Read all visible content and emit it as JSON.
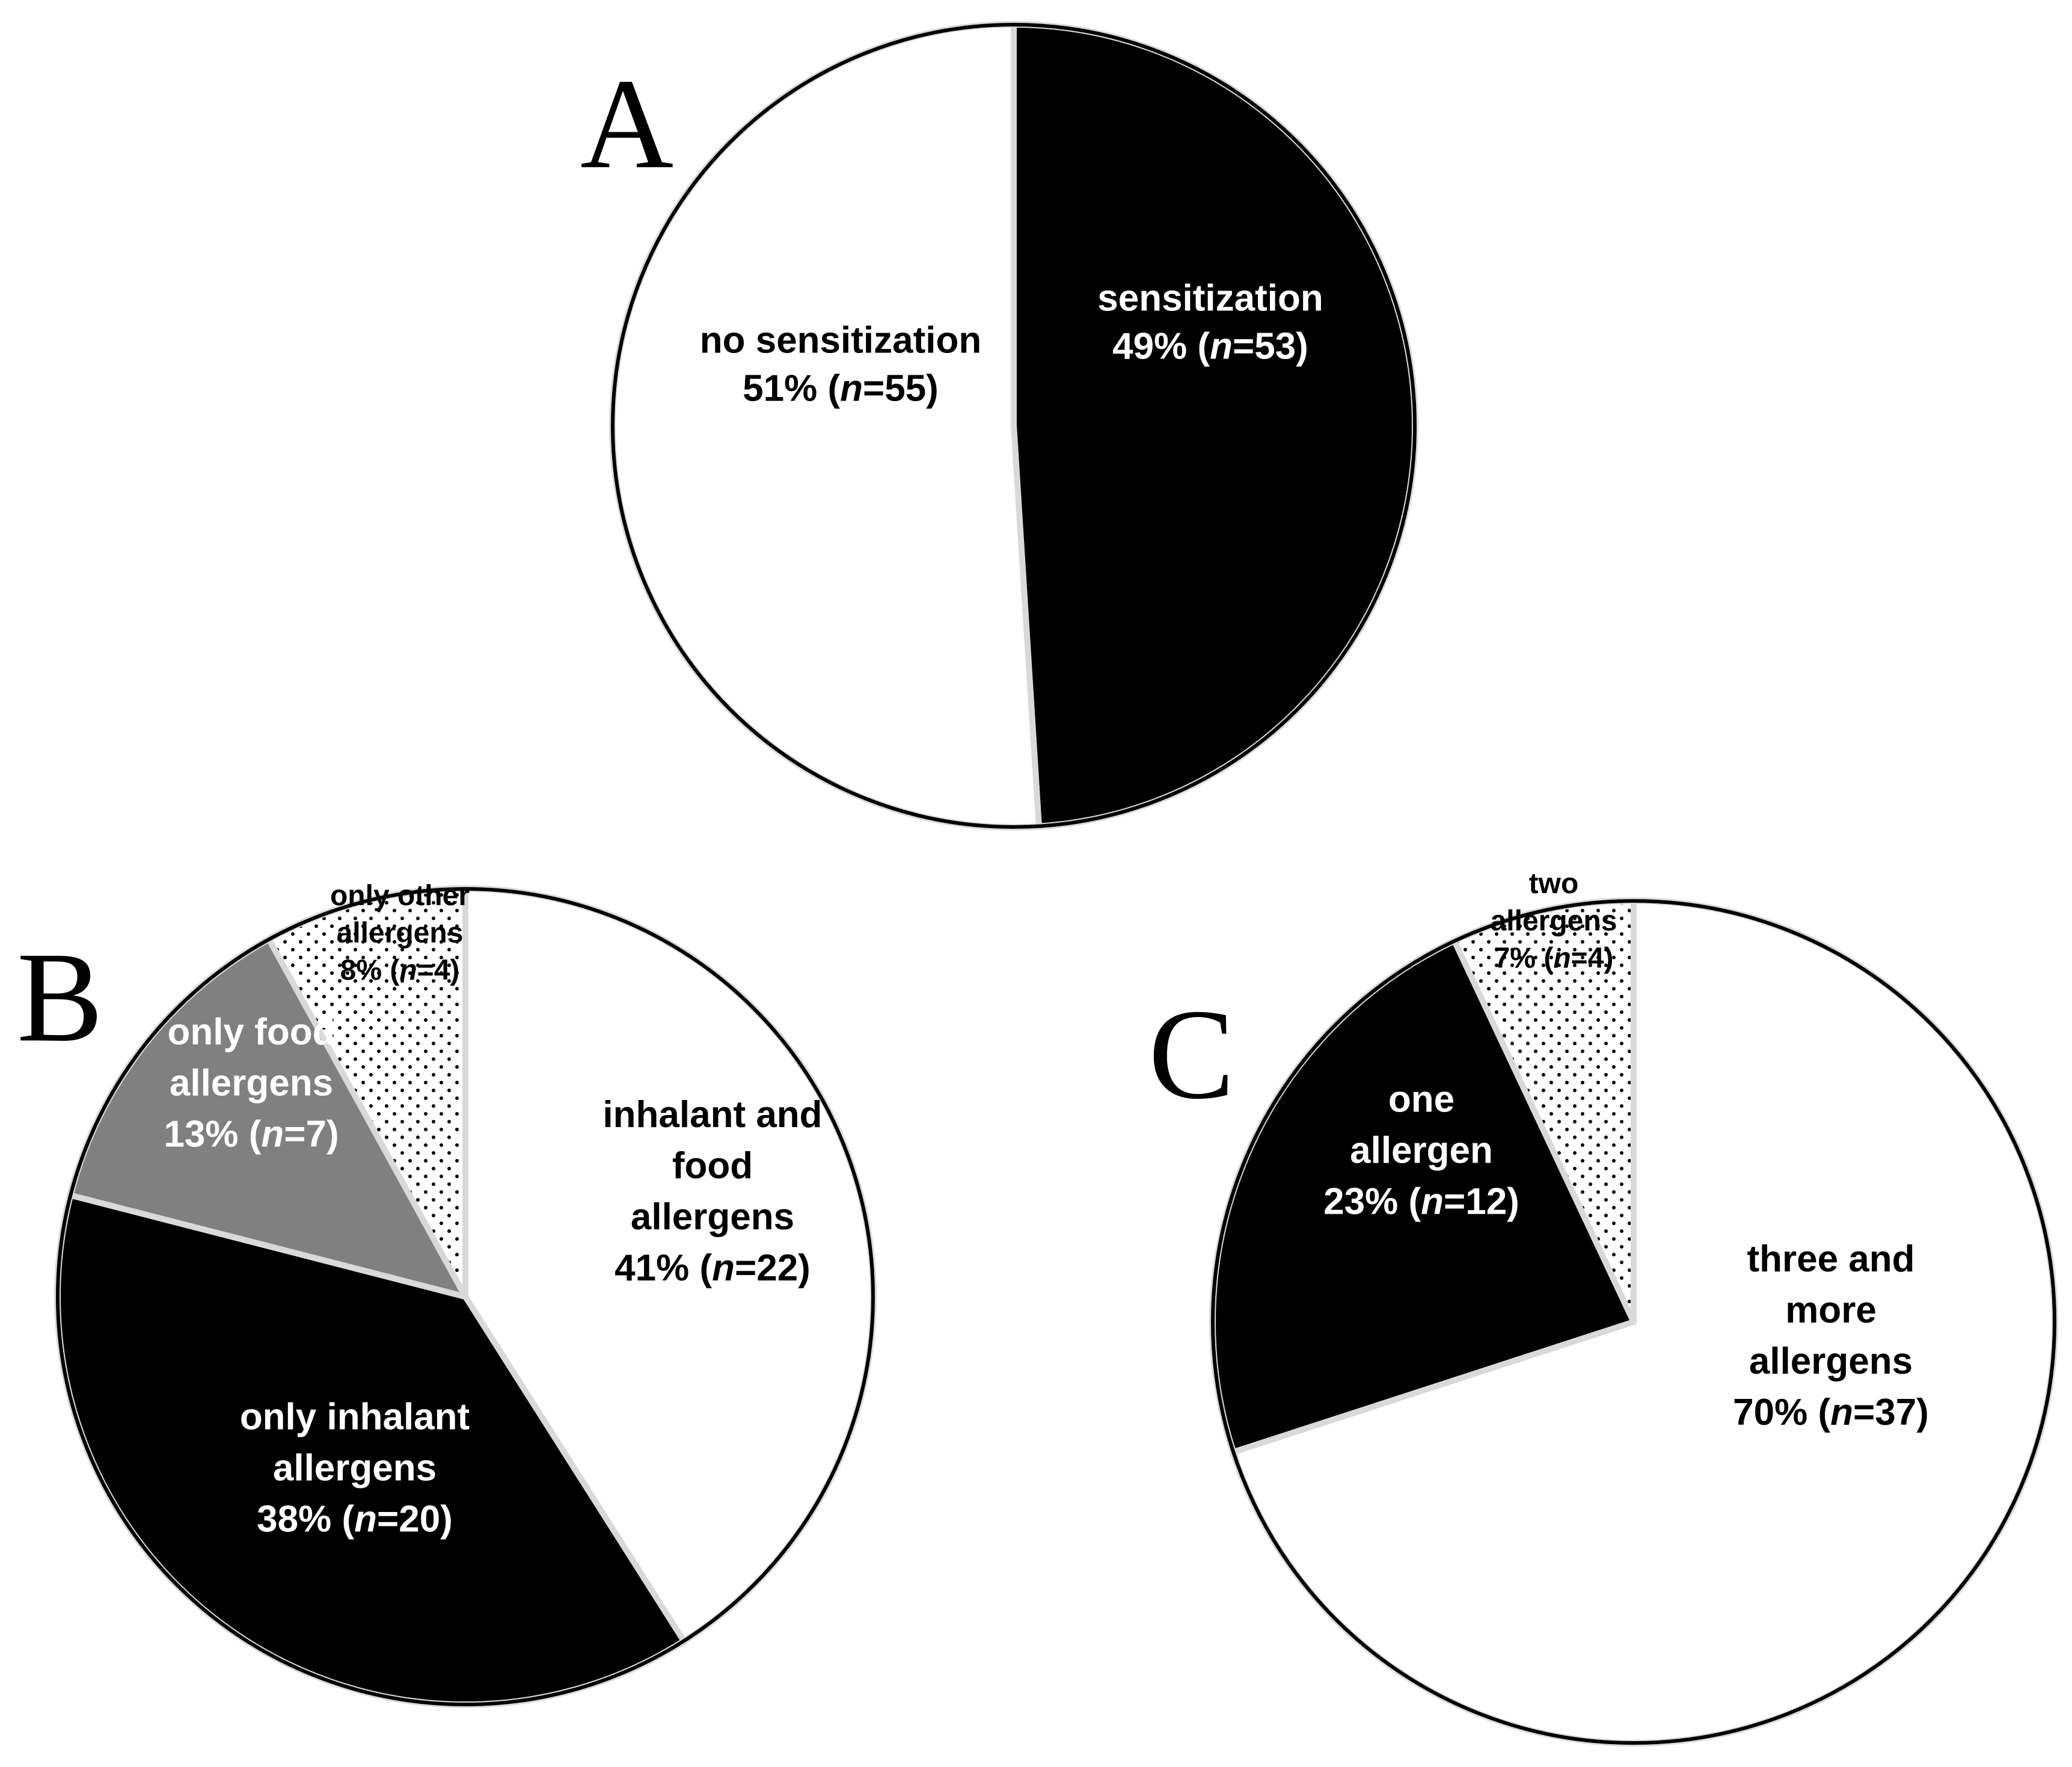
{
  "colors": {
    "black": "#000000",
    "white": "#ffffff",
    "gray": "#808080",
    "gap": "#d9d9d9"
  },
  "chart_data": [
    {
      "type": "pie",
      "panel": "A",
      "slices": [
        {
          "key": "sensitization",
          "label_lines": [
            "sensitization"
          ],
          "percent_text": "49%",
          "n": "53",
          "value": 49,
          "fill": "black",
          "text_color": "#ffffff"
        },
        {
          "key": "no-sensitization",
          "label_lines": [
            "no sensitization"
          ],
          "percent_text": "51%",
          "n": "55",
          "value": 51,
          "fill": "white",
          "text_color": "#000000"
        }
      ]
    },
    {
      "type": "pie",
      "panel": "B",
      "slices": [
        {
          "key": "inhalant-and-food",
          "label_lines": [
            "inhalant and",
            "food",
            "allergens"
          ],
          "percent_text": "41%",
          "n": "22",
          "value": 41,
          "fill": "white",
          "text_color": "#000000"
        },
        {
          "key": "only-inhalant",
          "label_lines": [
            "only inhalant",
            "allergens"
          ],
          "percent_text": "38%",
          "n": "20",
          "value": 38,
          "fill": "black",
          "text_color": "#ffffff"
        },
        {
          "key": "only-food",
          "label_lines": [
            "only food",
            "allergens"
          ],
          "percent_text": "13%",
          "n": "7",
          "value": 13,
          "fill": "gray",
          "text_color": "#ffffff"
        },
        {
          "key": "only-other",
          "label_lines": [
            "only other",
            "allergens"
          ],
          "percent_text": "8%",
          "n": "4",
          "value": 8,
          "fill": "dots",
          "text_color": "#000000"
        }
      ]
    },
    {
      "type": "pie",
      "panel": "C",
      "slices": [
        {
          "key": "three-and-more",
          "label_lines": [
            "three and",
            "more",
            "allergens"
          ],
          "percent_text": "70%",
          "n": "37",
          "value": 70,
          "fill": "white",
          "text_color": "#000000"
        },
        {
          "key": "one-allergen",
          "label_lines": [
            "one",
            "allergen"
          ],
          "percent_text": "23%",
          "n": "12",
          "value": 23,
          "fill": "black",
          "text_color": "#ffffff"
        },
        {
          "key": "two-allergens",
          "label_lines": [
            "two",
            "allergens"
          ],
          "percent_text": "7%",
          "n": "4",
          "value": 7,
          "fill": "dots",
          "text_color": "#000000"
        }
      ]
    }
  ]
}
